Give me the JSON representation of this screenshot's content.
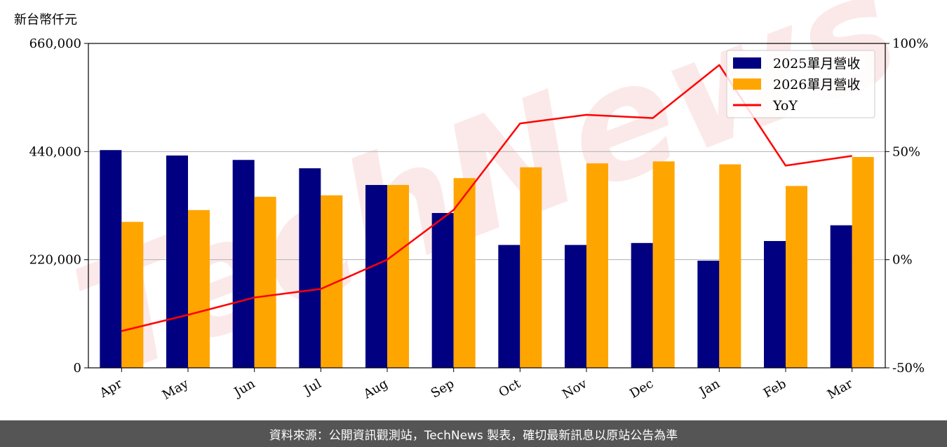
{
  "unit_label": "新台幣仟元",
  "watermark": "TechNews",
  "footer": "資料來源：公開資訊觀測站，TechNews 製表，確切最新訊息以原站公告為準",
  "colors": {
    "series_2025": "#000080",
    "series_2026": "#FFA500",
    "yoy": "#FF0000",
    "grid": "#b0b0b0"
  },
  "chart_data": {
    "type": "bar",
    "categories": [
      "Apr",
      "May",
      "Jun",
      "Jul",
      "Aug",
      "Sep",
      "Oct",
      "Nov",
      "Dec",
      "Jan",
      "Feb",
      "Mar"
    ],
    "series": [
      {
        "name": "2025單月營收",
        "values": [
          443000,
          432000,
          423000,
          406000,
          372000,
          315000,
          250000,
          250000,
          254000,
          218000,
          258000,
          290000
        ]
      },
      {
        "name": "2026單月營收",
        "values": [
          297000,
          321000,
          348000,
          351000,
          372000,
          386000,
          408000,
          416000,
          420000,
          414000,
          370000,
          429000
        ]
      }
    ],
    "line_series": {
      "name": "YoY",
      "axis": "right",
      "values": [
        -33,
        -25.5,
        -17.5,
        -13.5,
        0,
        23,
        63,
        67,
        65.5,
        90,
        43.5,
        48
      ]
    },
    "ylabel": "新台幣仟元",
    "ylim": [
      0,
      660000
    ],
    "yticks": [
      "0",
      "220,000",
      "440,000",
      "660,000"
    ],
    "y2lim": [
      -50,
      100
    ],
    "y2ticks": [
      "-50%",
      "0%",
      "50%",
      "100%"
    ],
    "grid": true,
    "legend_position": "top-right"
  }
}
